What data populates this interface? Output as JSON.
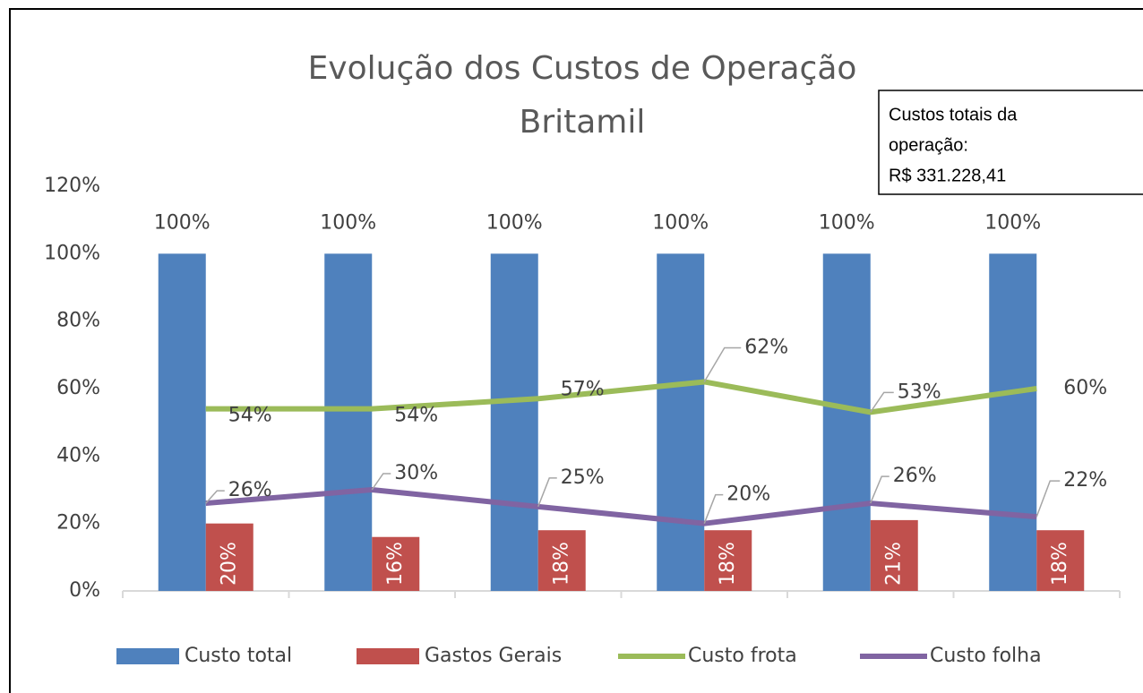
{
  "chart_data": {
    "type": "bar_line",
    "title": [
      "Evolução dos Custos de Operação",
      "Britamil"
    ],
    "annotation": [
      "Custos totais da",
      "operação:",
      "R$ 331.228,41"
    ],
    "series": [
      {
        "name": "Custo total",
        "kind": "bar",
        "color": "#4f81bd",
        "values": [
          100,
          100,
          100,
          100,
          100,
          100
        ],
        "value_labels": [
          "100%",
          "100%",
          "100%",
          "100%",
          "100%",
          "100%"
        ]
      },
      {
        "name": "Gastos Gerais",
        "kind": "bar",
        "color": "#c0504d",
        "values": [
          20,
          16,
          18,
          18,
          21,
          18
        ],
        "value_labels": [
          "20%",
          "16%",
          "18%",
          "18%",
          "21%",
          "18%"
        ]
      },
      {
        "name": "Custo frota",
        "kind": "line",
        "color": "#9bbb59",
        "values": [
          54,
          54,
          57,
          62,
          53,
          60
        ],
        "value_labels": [
          "54%",
          "54%",
          "57%",
          "62%",
          "53%",
          "60%"
        ]
      },
      {
        "name": "Custo folha",
        "kind": "line",
        "color": "#8064a2",
        "values": [
          26,
          30,
          25,
          20,
          26,
          22
        ],
        "value_labels": [
          "26%",
          "30%",
          "25%",
          "20%",
          "26%",
          "22%"
        ]
      }
    ],
    "ylim": [
      0,
      120
    ],
    "yticks": [
      {
        "value": 0,
        "label": "0%"
      },
      {
        "value": 20,
        "label": "20%"
      },
      {
        "value": 40,
        "label": "40%"
      },
      {
        "value": 60,
        "label": "60%"
      },
      {
        "value": 80,
        "label": "80%"
      },
      {
        "value": 100,
        "label": "100%"
      },
      {
        "value": 120,
        "label": "120%"
      }
    ],
    "grid": false,
    "legend": "bottom"
  }
}
